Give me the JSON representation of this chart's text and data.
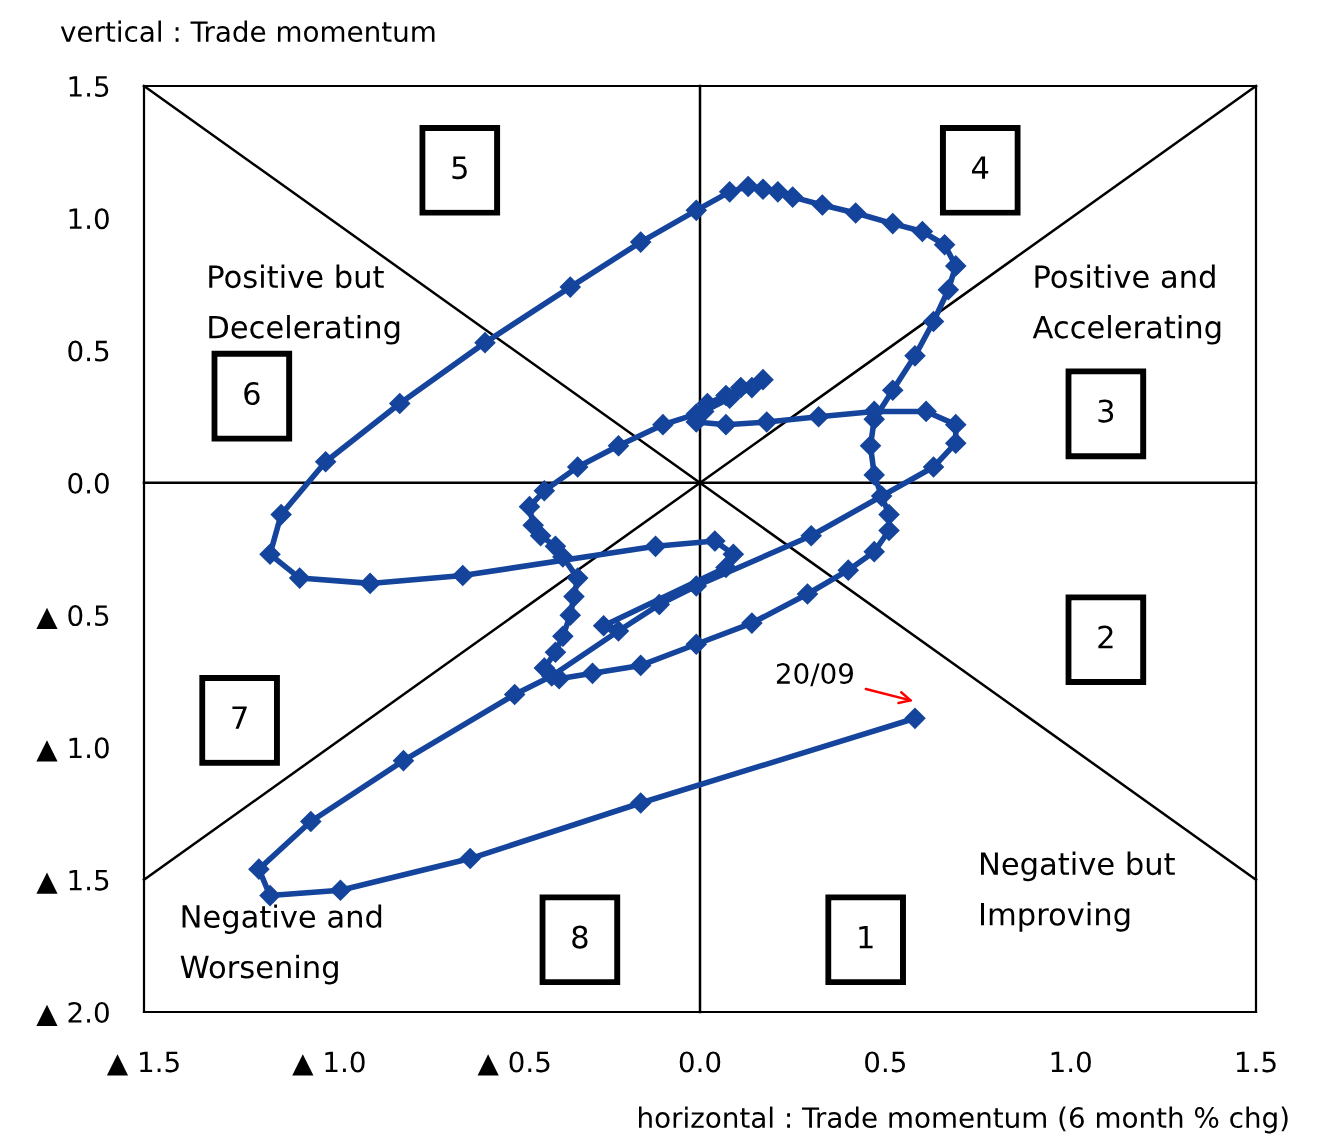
{
  "chart_data": {
    "type": "line",
    "xlabel": "horizontal : Trade momentum (6 month % chg)",
    "ylabel": "vertical : Trade momentum",
    "xlim": [
      -1.5,
      1.5
    ],
    "ylim": [
      -2.0,
      1.5
    ],
    "xticks": [
      {
        "value": -1.5,
        "label": "▲ 1.5"
      },
      {
        "value": -1.0,
        "label": "▲ 1.0"
      },
      {
        "value": -0.5,
        "label": "▲ 0.5"
      },
      {
        "value": 0.0,
        "label": "0.0"
      },
      {
        "value": 0.5,
        "label": "0.5"
      },
      {
        "value": 1.0,
        "label": "1.0"
      },
      {
        "value": 1.5,
        "label": "1.5"
      }
    ],
    "yticks": [
      {
        "value": 1.5,
        "label": "1.5"
      },
      {
        "value": 1.0,
        "label": "1.0"
      },
      {
        "value": 0.5,
        "label": "0.5"
      },
      {
        "value": 0.0,
        "label": "0.0"
      },
      {
        "value": -0.5,
        "label": "▲ 0.5"
      },
      {
        "value": -1.0,
        "label": "▲ 1.0"
      },
      {
        "value": -1.5,
        "label": "▲ 1.5"
      },
      {
        "value": -2.0,
        "label": "▲ 2.0"
      }
    ],
    "grid": false,
    "series": [
      {
        "type": "line",
        "color": "#000000",
        "marker": "none",
        "x": [
          0.0,
          0.0
        ],
        "values": [
          -2.0,
          1.5
        ]
      },
      {
        "type": "line",
        "color": "#000000",
        "marker": "none",
        "x": [
          -1.5,
          1.5
        ],
        "values": [
          0.0,
          0.0
        ]
      },
      {
        "type": "line",
        "color": "#000000",
        "marker": "none",
        "x": [
          -1.5,
          1.5
        ],
        "values": [
          1.5,
          -1.5
        ]
      },
      {
        "type": "line",
        "color": "#000000",
        "marker": "none",
        "x": [
          -1.5,
          1.5
        ],
        "values": [
          -1.5,
          1.5
        ]
      },
      {
        "color": "#14449c",
        "marker": "diamond",
        "x": [
          -0.26,
          0.07,
          0.09,
          0.04,
          -0.12,
          -0.64,
          -0.89,
          -1.08,
          -1.16,
          -1.13,
          -1.01,
          -0.81,
          -0.58,
          -0.35,
          -0.16,
          -0.01,
          0.08,
          0.13,
          0.17,
          0.21,
          0.25,
          0.33,
          0.42,
          0.52,
          0.6,
          0.66,
          0.69,
          0.67,
          0.63,
          0.58,
          0.52,
          0.47,
          0.46,
          0.47,
          0.49,
          0.51,
          0.51,
          0.47,
          0.4,
          0.29,
          0.14,
          -0.01,
          -0.16,
          -0.29,
          -0.38,
          -0.42,
          -0.39,
          -0.37,
          -0.35,
          -0.34,
          -0.33,
          -0.37,
          -0.39,
          -0.43,
          -0.45,
          -0.46,
          -0.42,
          -0.33,
          -0.22,
          -0.1,
          -0.01,
          0.02,
          0.07,
          0.11,
          0.17,
          0.14,
          0.08,
          0.01,
          -0.01,
          0.07,
          0.18,
          0.32,
          0.47,
          0.61,
          0.69,
          0.69,
          0.63,
          0.3,
          -0.01,
          -0.11,
          -0.22,
          -0.4,
          -0.5,
          -0.8,
          -1.05,
          -1.19,
          -1.16,
          -0.97,
          -0.62,
          -0.16,
          0.58
        ],
        "values": [
          -0.54,
          -0.32,
          -0.27,
          -0.22,
          -0.24,
          -0.35,
          -0.38,
          -0.36,
          -0.27,
          -0.12,
          0.08,
          0.3,
          0.53,
          0.74,
          0.91,
          1.03,
          1.1,
          1.12,
          1.11,
          1.1,
          1.08,
          1.05,
          1.02,
          0.98,
          0.95,
          0.9,
          0.82,
          0.73,
          0.61,
          0.48,
          0.35,
          0.24,
          0.14,
          0.03,
          -0.05,
          -0.12,
          -0.18,
          -0.26,
          -0.33,
          -0.42,
          -0.53,
          -0.61,
          -0.69,
          -0.72,
          -0.74,
          -0.7,
          -0.64,
          -0.58,
          -0.5,
          -0.43,
          -0.36,
          -0.28,
          -0.24,
          -0.2,
          -0.16,
          -0.09,
          -0.03,
          0.06,
          0.14,
          0.22,
          0.26,
          0.3,
          0.33,
          0.36,
          0.39,
          0.36,
          0.32,
          0.27,
          0.23,
          0.22,
          0.23,
          0.25,
          0.27,
          0.27,
          0.22,
          0.15,
          0.06,
          -0.2,
          -0.39,
          -0.46,
          -0.56,
          -0.73,
          -0.8,
          -1.05,
          -1.28,
          -1.46,
          -1.56,
          -1.54,
          -1.42,
          -1.21,
          -0.89
        ]
      }
    ],
    "annotations": [
      "5",
      "4",
      "Positive but\nDecelerating",
      "Positive and\nAccelerating",
      "6",
      "3",
      "2",
      {
        "text": "20/09",
        "x": 0.58,
        "y": -0.89
      },
      "7",
      "Negative but\nImproving",
      "Negative and\nWorsening",
      "8",
      "1"
    ]
  }
}
